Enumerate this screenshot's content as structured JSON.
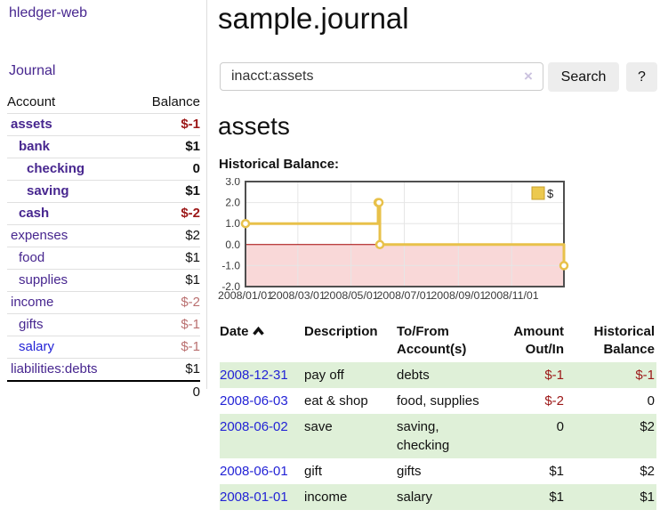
{
  "app": {
    "brand": "hledger-web"
  },
  "sidebar": {
    "journal_link": "Journal",
    "accounts": {
      "col_account": "Account",
      "col_balance": "Balance",
      "rows": [
        {
          "account": "assets",
          "balance": "$-1",
          "depth": 1,
          "matched": true
        },
        {
          "account": "bank",
          "balance": "$1",
          "depth": 2,
          "matched": true
        },
        {
          "account": "checking",
          "balance": "0",
          "depth": 3,
          "matched": true
        },
        {
          "account": "saving",
          "balance": "$1",
          "depth": 3,
          "matched": true
        },
        {
          "account": "cash",
          "balance": "$-2",
          "depth": 2,
          "matched": true
        },
        {
          "account": "expenses",
          "balance": "$2",
          "depth": 1,
          "matched": false
        },
        {
          "account": "food",
          "balance": "$1",
          "depth": 2,
          "matched": false
        },
        {
          "account": "supplies",
          "balance": "$1",
          "depth": 2,
          "matched": false
        },
        {
          "account": "income",
          "balance": "$-2",
          "depth": 1,
          "matched": false
        },
        {
          "account": "gifts",
          "balance": "$-1",
          "depth": 2,
          "matched": false
        },
        {
          "account": "salary",
          "balance": "$-1",
          "depth": 2,
          "matched": false,
          "blue_link": true
        },
        {
          "account": "liabilities:debts",
          "balance": "$1",
          "depth": 1,
          "matched": false
        }
      ],
      "total": "0"
    }
  },
  "main": {
    "title": "sample.journal",
    "search": {
      "value": "inacct:assets",
      "clear": "×",
      "button": "Search",
      "help": "?"
    },
    "account_heading": "assets",
    "chart_title": "Historical Balance:",
    "register": {
      "headers": {
        "date": "Date",
        "description": "Description",
        "tofrom": "To/From Account(s)",
        "amount": "Amount Out/In",
        "balance": "Historical Balance"
      },
      "rows": [
        {
          "date": "2008-12-31",
          "description": "pay off",
          "accounts": "debts",
          "amount": "$-1",
          "balance": "$-1"
        },
        {
          "date": "2008-06-03",
          "description": "eat & shop",
          "accounts": "food, supplies",
          "amount": "$-2",
          "balance": "0"
        },
        {
          "date": "2008-06-02",
          "description": "save",
          "accounts": "saving, checking",
          "amount": "0",
          "balance": "$2"
        },
        {
          "date": "2008-06-01",
          "description": "gift",
          "accounts": "gifts",
          "amount": "$1",
          "balance": "$2"
        },
        {
          "date": "2008-01-01",
          "description": "income",
          "accounts": "salary",
          "amount": "$1",
          "balance": "$1"
        }
      ]
    }
  },
  "chart_data": {
    "type": "line",
    "step": true,
    "title": "Historical Balance:",
    "legend": [
      {
        "label": "$",
        "color": "#ecc94f"
      }
    ],
    "legend_position": "top-right",
    "points": [
      {
        "date": "2008-01-01",
        "day": 0,
        "value": 1
      },
      {
        "date": "2008-06-01",
        "day": 152,
        "value": 2
      },
      {
        "date": "2008-06-02",
        "day": 153,
        "value": 2
      },
      {
        "date": "2008-06-03",
        "day": 154,
        "value": 0
      },
      {
        "date": "2008-12-31",
        "day": 365,
        "value": -1
      }
    ],
    "ylim": [
      -2,
      3
    ],
    "yticks": [
      3,
      2,
      1,
      0,
      -1,
      -2
    ],
    "ytick_labels": [
      "3.0",
      "2.0",
      "1.0",
      "0.0",
      "-1.0",
      "-2.0"
    ],
    "xticks": [
      {
        "label": "2008/01/01",
        "day": 0
      },
      {
        "label": "2008/03/01",
        "day": 60
      },
      {
        "label": "2008/05/01",
        "day": 121
      },
      {
        "label": "2008/07/01",
        "day": 182
      },
      {
        "label": "2008/09/01",
        "day": 244
      },
      {
        "label": "2008/11/01",
        "day": 305
      }
    ],
    "x_range_days": [
      0,
      365
    ],
    "grid": true,
    "line_color": "#e8c14a",
    "marker_fill": "#ffffff",
    "negative_region_color": "#f9d8d8",
    "zero_line_color": "#a30000"
  }
}
